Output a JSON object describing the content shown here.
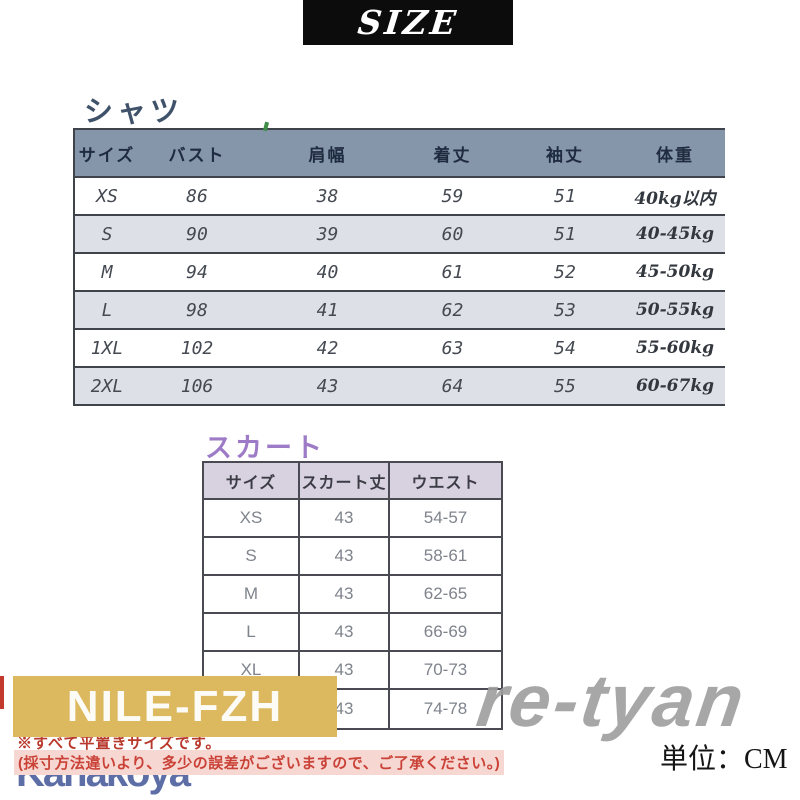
{
  "banner": {
    "label": "SIZE"
  },
  "shirt": {
    "heading": "シャツ",
    "headers": [
      "サイズ",
      "バスト",
      "肩幅",
      "着丈",
      "袖丈",
      "体重"
    ],
    "rows": [
      [
        "XS",
        "86",
        "38",
        "59",
        "51",
        "40kg以内"
      ],
      [
        "S",
        "90",
        "39",
        "60",
        "51",
        "40-45kg"
      ],
      [
        "M",
        "94",
        "40",
        "61",
        "52",
        "45-50kg"
      ],
      [
        "L",
        "98",
        "41",
        "62",
        "53",
        "50-55kg"
      ],
      [
        "1XL",
        "102",
        "42",
        "63",
        "54",
        "55-60kg"
      ],
      [
        "2XL",
        "106",
        "43",
        "64",
        "55",
        "60-67kg"
      ]
    ]
  },
  "skirt": {
    "heading": "スカート",
    "headers": [
      "サイズ",
      "スカート丈",
      "ウエスト"
    ],
    "rows": [
      [
        "XS",
        "43",
        "54-57"
      ],
      [
        "S",
        "43",
        "58-61"
      ],
      [
        "M",
        "43",
        "62-65"
      ],
      [
        "L",
        "43",
        "66-69"
      ],
      [
        "XL",
        "43",
        "70-73"
      ],
      [
        "",
        "43",
        "74-78"
      ]
    ]
  },
  "badge": {
    "label": "NILE-FZH",
    "bg": "#dcb85e"
  },
  "notes": {
    "line1": "※すべて平置きサイズです。",
    "line2": "(採寸方法違いより、多少の誤差がございますので、ご了承ください。)"
  },
  "watermark_left": "Kanakoya",
  "watermark_right": "re-tyan",
  "unit": "単位：CM",
  "colors": {
    "banner_bg": "#0c0c0c",
    "shirt_heading": "#40526a",
    "shirt_header_bg": "#8595aa",
    "shirt_alt_row_bg": "#dde1e7",
    "skirt_heading": "#9d7bc7",
    "skirt_header_bg": "#d8d1e0",
    "skirt_border": "#4a4a52",
    "badge_bg": "#dcb85e",
    "note_red": "#ca4237",
    "watermark_blue": "#5d6ea6",
    "watermark_gray": "#9e9e9e"
  }
}
